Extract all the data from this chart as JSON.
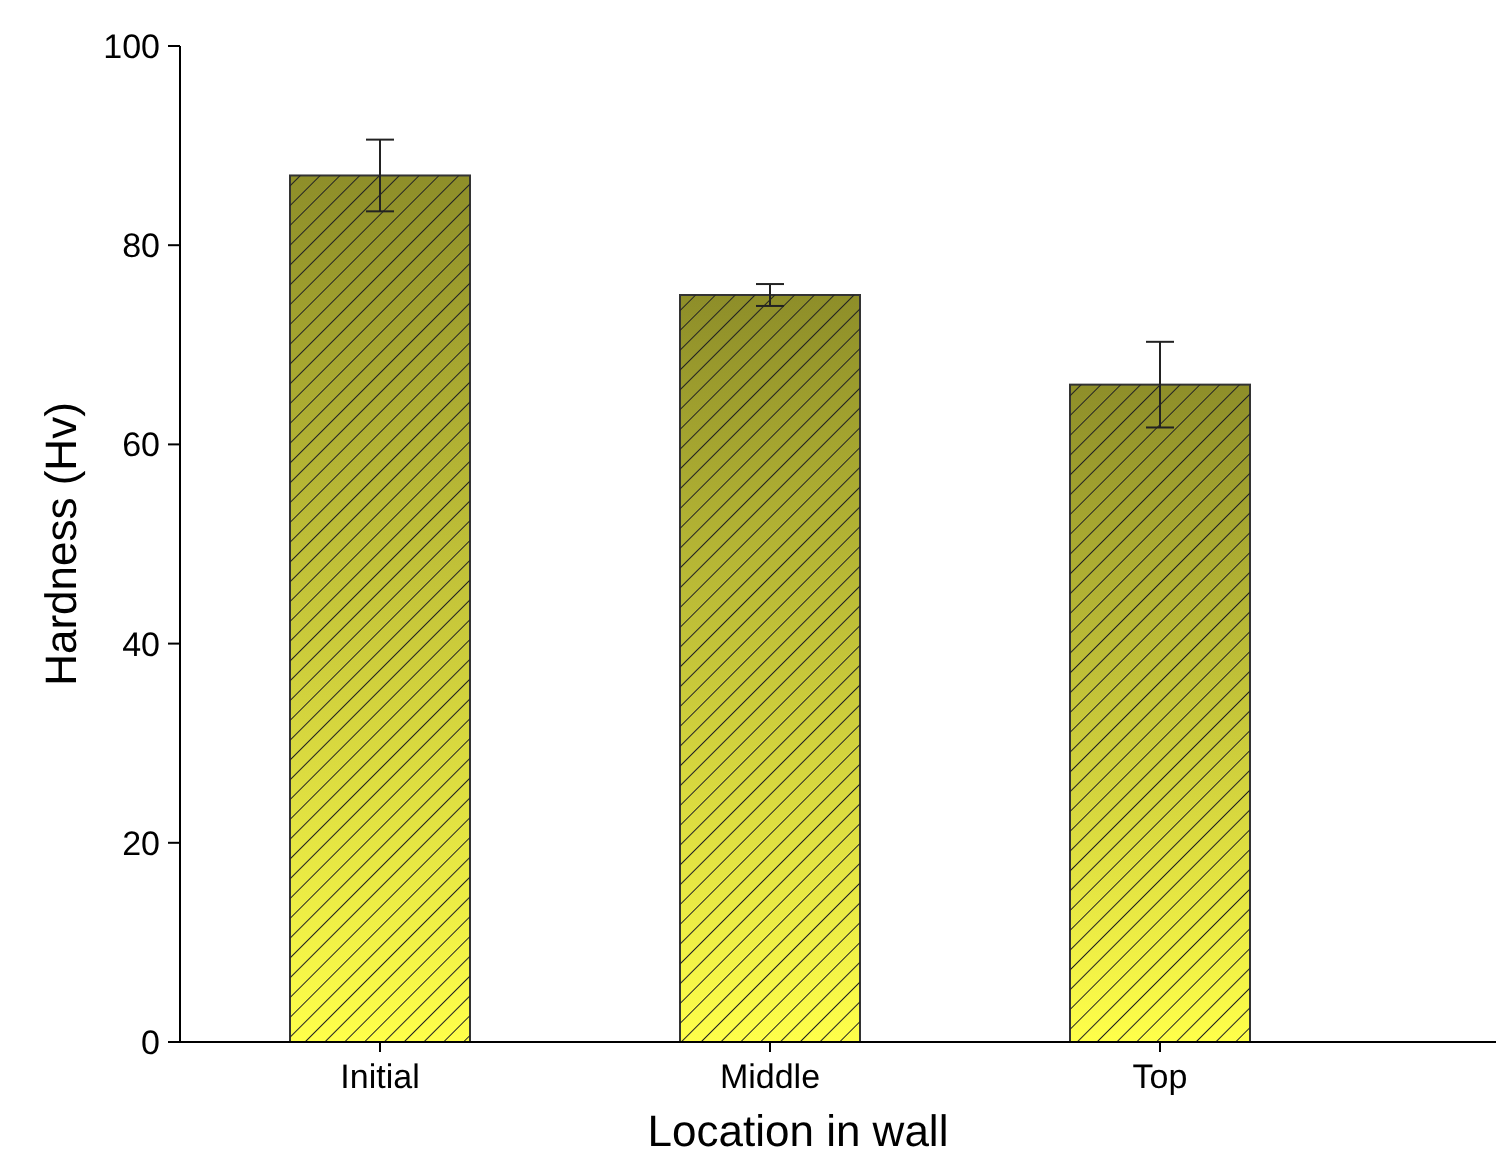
{
  "chart_data": {
    "type": "bar",
    "xlabel": "Location in wall",
    "ylabel": "Hardness (Hv)",
    "categories": [
      "Initial",
      "Middle",
      "Top"
    ],
    "values": [
      87,
      75,
      66
    ],
    "errors": [
      3.6,
      1.1,
      4.3
    ],
    "color": "#d2d23c",
    "ylim": [
      0,
      100
    ],
    "yticks": [
      0,
      20,
      40,
      60,
      80,
      100
    ],
    "grid": false
  }
}
